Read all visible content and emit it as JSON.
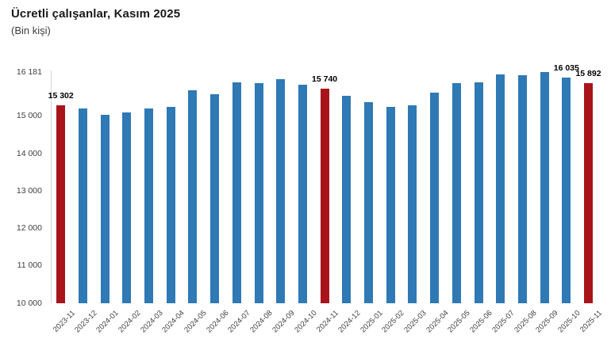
{
  "header": {
    "title": "Ücretli çalışanlar, Kasım 2025",
    "subtitle": "(Bin kişi)"
  },
  "colors": {
    "bar_default": "#2f79b5",
    "bar_highlight": "#a9141b",
    "axis_line": "#d9d9d9",
    "axis_text": "#404040",
    "data_label_text": "#000000"
  },
  "chart_data": {
    "type": "bar",
    "title": "Ücretli çalışanlar, Kasım 2025",
    "subtitle": "(Bin kişi)",
    "ylabel": "Bin kişi",
    "xlabel": "",
    "ylim": [
      10000,
      16181
    ],
    "grid": false,
    "legend": false,
    "categories": [
      "2023-11",
      "2023-12",
      "2024-01",
      "2024-02",
      "2024-03",
      "2024-04",
      "2024-05",
      "2024-06",
      "2024-07",
      "2024-08",
      "2024-09",
      "2024-10",
      "2024-11",
      "2024-12",
      "2025-01",
      "2025-02",
      "2025-03",
      "2025-04",
      "2025-05",
      "2025-06",
      "2025-07",
      "2025-08",
      "2025-09",
      "2025-10",
      "2025-11"
    ],
    "values": [
      15302,
      15215,
      15045,
      15105,
      15200,
      15250,
      15685,
      15590,
      15900,
      15885,
      15985,
      15850,
      15740,
      15550,
      15380,
      15260,
      15300,
      15630,
      15885,
      15915,
      16110,
      16090,
      16181,
      16035,
      15892
    ],
    "highlighted_categories": [
      "2023-11",
      "2024-11",
      "2025-11"
    ],
    "data_labels": {
      "2023-11": "15 302",
      "2024-11": "15 740",
      "2025-10": "16 035",
      "2025-11": "15 892"
    },
    "y_axis_ticks": [
      {
        "label": "16 181",
        "value": 16181
      },
      {
        "label": "15 000",
        "value": 15000
      },
      {
        "label": "14 000",
        "value": 14000
      },
      {
        "label": "13 000",
        "value": 13000
      },
      {
        "label": "12 000",
        "value": 12000
      },
      {
        "label": "11 000",
        "value": 11000
      },
      {
        "label": "10 000",
        "value": 10000
      }
    ]
  }
}
